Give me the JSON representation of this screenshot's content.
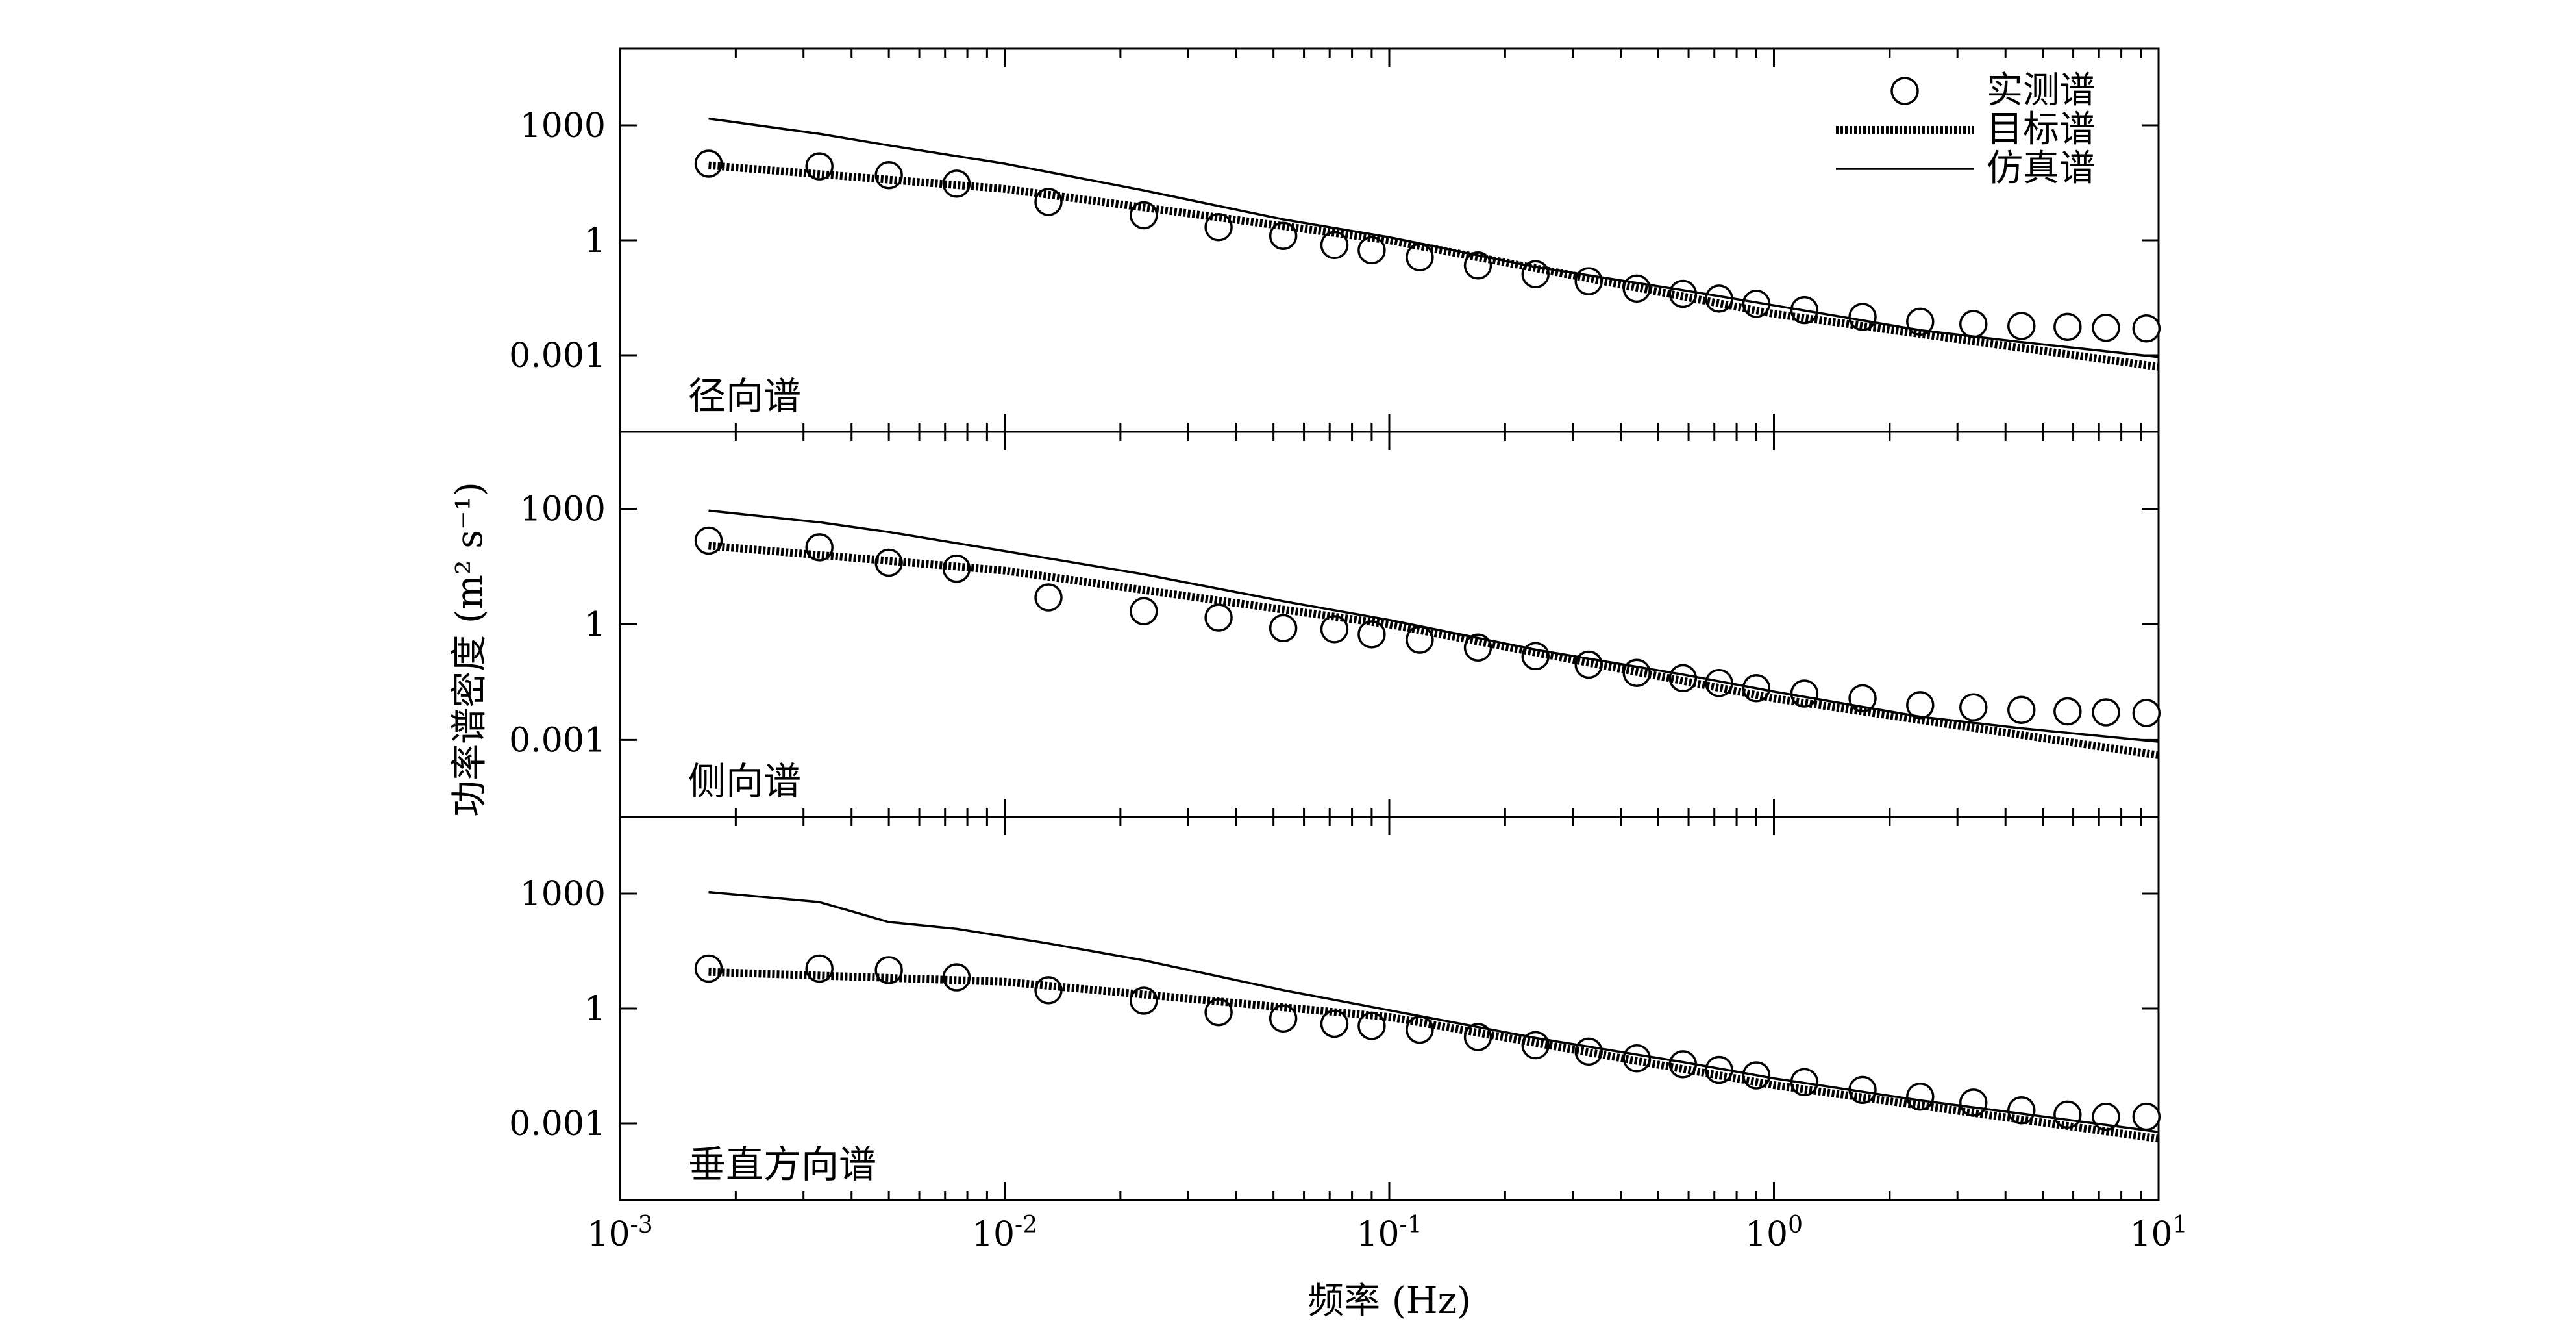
{
  "chart_data": {
    "type": "line",
    "xlabel": "频率 (Hz)",
    "ylabel": "功率谱密度 (m² s⁻¹)",
    "xscale": "log",
    "yscale": "log",
    "xlim": [
      0.001,
      10
    ],
    "ylim": [
      1e-05,
      100000
    ],
    "x_ticks": [
      {
        "base": "10",
        "exp": "-3",
        "value": 0.001
      },
      {
        "base": "10",
        "exp": "-2",
        "value": 0.01
      },
      {
        "base": "10",
        "exp": "-1",
        "value": 0.1
      },
      {
        "base": "10",
        "exp": "0",
        "value": 1
      },
      {
        "base": "10",
        "exp": "1",
        "value": 10
      }
    ],
    "y_ticks": [
      {
        "label": "0.001",
        "value": 0.001
      },
      {
        "label": "1",
        "value": 1
      },
      {
        "label": "1000",
        "value": 1000
      }
    ],
    "legend": {
      "placement": "top-right",
      "entries": [
        {
          "label": "实测谱",
          "style": "circle"
        },
        {
          "label": "目标谱",
          "style": "thick-dotted"
        },
        {
          "label": "仿真谱",
          "style": "solid"
        }
      ]
    },
    "panels": [
      {
        "label": "径向谱",
        "series": [
          {
            "name": "实测谱",
            "style": "circle",
            "x": [
              0.0017,
              0.0033,
              0.005,
              0.0075,
              0.013,
              0.023,
              0.036,
              0.053,
              0.072,
              0.09,
              0.12,
              0.17,
              0.24,
              0.33,
              0.44,
              0.58,
              0.72,
              0.9,
              1.2,
              1.7,
              2.4,
              3.3,
              4.4,
              5.8,
              7.3,
              9.3
            ],
            "y": [
              100,
              85,
              50,
              30,
              10,
              4.5,
              2.2,
              1.3,
              0.75,
              0.55,
              0.36,
              0.22,
              0.13,
              0.085,
              0.055,
              0.04,
              0.03,
              0.022,
              0.015,
              0.01,
              0.0075,
              0.0065,
              0.0058,
              0.0055,
              0.0052,
              0.005
            ]
          },
          {
            "name": "目标谱",
            "style": "thick-dotted",
            "x": [
              0.0017,
              0.01,
              0.1,
              1,
              10
            ],
            "y": [
              90,
              22,
              1.0,
              0.012,
              0.0005
            ]
          },
          {
            "name": "仿真谱",
            "style": "solid",
            "x": [
              0.0017,
              0.0033,
              0.005,
              0.01,
              0.023,
              0.053,
              0.1,
              0.24,
              0.58,
              1,
              2.4,
              4.4,
              10
            ],
            "y": [
              1500,
              600,
              300,
              100,
              20,
              3.5,
              1.2,
              0.2,
              0.05,
              0.02,
              0.0045,
              0.0022,
              0.0009
            ]
          }
        ]
      },
      {
        "label": "侧向谱",
        "series": [
          {
            "name": "实测谱",
            "style": "circle",
            "x": [
              0.0017,
              0.0033,
              0.005,
              0.0075,
              0.013,
              0.023,
              0.036,
              0.053,
              0.072,
              0.09,
              0.12,
              0.17,
              0.24,
              0.33,
              0.44,
              0.58,
              0.72,
              0.9,
              1.2,
              1.7,
              2.4,
              3.3,
              4.4,
              5.8,
              7.3,
              9.3
            ],
            "y": [
              150,
              100,
              40,
              28,
              5,
              2.2,
              1.5,
              0.8,
              0.75,
              0.55,
              0.4,
              0.25,
              0.15,
              0.09,
              0.055,
              0.04,
              0.03,
              0.022,
              0.016,
              0.012,
              0.008,
              0.007,
              0.006,
              0.0055,
              0.0052,
              0.005
            ]
          },
          {
            "name": "目标谱",
            "style": "thick-dotted",
            "x": [
              0.0017,
              0.01,
              0.1,
              1,
              10
            ],
            "y": [
              110,
              25,
              1.0,
              0.012,
              0.0004
            ]
          },
          {
            "name": "仿真谱",
            "style": "solid",
            "x": [
              0.0017,
              0.0033,
              0.005,
              0.01,
              0.023,
              0.053,
              0.1,
              0.24,
              0.58,
              1,
              2.4,
              4.4,
              10
            ],
            "y": [
              900,
              450,
              250,
              80,
              20,
              4,
              1.3,
              0.22,
              0.05,
              0.018,
              0.004,
              0.002,
              0.0009
            ]
          }
        ]
      },
      {
        "label": "垂直方向谱",
        "series": [
          {
            "name": "实测谱",
            "style": "circle",
            "x": [
              0.0017,
              0.0033,
              0.005,
              0.0075,
              0.013,
              0.023,
              0.036,
              0.053,
              0.072,
              0.09,
              0.12,
              0.17,
              0.24,
              0.33,
              0.44,
              0.58,
              0.72,
              0.9,
              1.2,
              1.7,
              2.4,
              3.3,
              4.4,
              5.8,
              7.3,
              9.3
            ],
            "y": [
              11,
              11,
              10,
              6.5,
              3,
              1.6,
              0.8,
              0.55,
              0.4,
              0.35,
              0.28,
              0.18,
              0.11,
              0.075,
              0.05,
              0.035,
              0.025,
              0.018,
              0.012,
              0.0075,
              0.005,
              0.0035,
              0.0022,
              0.0017,
              0.0015,
              0.0015
            ]
          },
          {
            "name": "目标谱",
            "style": "thick-dotted",
            "x": [
              0.0017,
              0.01,
              0.1,
              1,
              10
            ],
            "y": [
              9,
              5,
              0.6,
              0.01,
              0.0004
            ]
          },
          {
            "name": "仿真谱",
            "style": "solid",
            "x": [
              0.0017,
              0.0033,
              0.005,
              0.0075,
              0.013,
              0.023,
              0.053,
              0.1,
              0.24,
              0.58,
              1,
              2.4,
              4.4,
              10
            ],
            "y": [
              1100,
              600,
              180,
              120,
              50,
              18,
              3,
              0.9,
              0.17,
              0.04,
              0.015,
              0.004,
              0.0018,
              0.0006
            ]
          }
        ]
      }
    ]
  }
}
